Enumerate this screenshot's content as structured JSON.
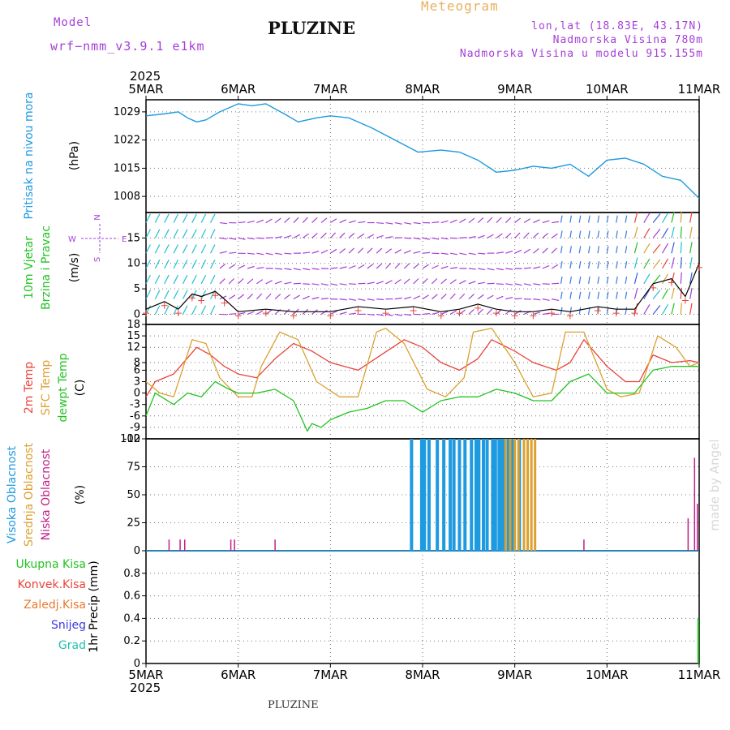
{
  "header": {
    "model_label": "Model",
    "model_name": "wrf−nmm_v3.9.1  e1km",
    "title": "PLUZINE",
    "subtitle": "Meteogram",
    "coords": "lon,lat (18.83E, 43.17N)",
    "elevation": "Nadmorska Visina 780m",
    "model_elevation": "Nadmorska Visina u modelu 915.155m",
    "footer_title": "PLUZINE",
    "credit": "made by Angel"
  },
  "colors": {
    "pressure": "#1e9ae0",
    "t2m": "#e8433a",
    "sfc": "#dca030",
    "dewpt": "#22c322",
    "high_cloud": "#1e9ae0",
    "mid_cloud": "#dca030",
    "low_cloud": "#c0208a",
    "wind_label_a": "#22c322",
    "wind_label_b": "#22c322",
    "rain": "#22c322",
    "conv": "#e8433a",
    "frz": "#e87a30",
    "snow": "#3a3ae0",
    "hail": "#20c0b0",
    "purple": "#a63ed8"
  },
  "time_axis": {
    "year": "2025",
    "ticks": [
      "5MAR",
      "6MAR",
      "7MAR",
      "8MAR",
      "9MAR",
      "10MAR",
      "11MAR"
    ]
  },
  "chart_data": [
    {
      "type": "line",
      "name": "pressure",
      "ylabel_1": "Pritisak na nivou mora",
      "ylabel_2": "(hPa)",
      "ylim": [
        1004,
        1032
      ],
      "yticks": [
        1008,
        1015,
        1022,
        1029
      ],
      "grid": true,
      "x_unit": "days since 5MAR 00UTC",
      "series": [
        {
          "name": "pressure",
          "x": [
            0,
            0.2,
            0.35,
            0.45,
            0.55,
            0.65,
            0.8,
            1.0,
            1.15,
            1.3,
            1.5,
            1.65,
            1.85,
            2.0,
            2.2,
            2.45,
            2.7,
            2.95,
            3.2,
            3.4,
            3.6,
            3.8,
            4.0,
            4.2,
            4.4,
            4.6,
            4.8,
            5.0,
            5.2,
            5.4,
            5.6,
            5.8,
            6.0
          ],
          "values": [
            1028,
            1028.5,
            1029,
            1027.5,
            1026.5,
            1027,
            1029,
            1031,
            1030.5,
            1031,
            1028.5,
            1026.5,
            1027.5,
            1028,
            1027.5,
            1025,
            1022,
            1019,
            1019.5,
            1019,
            1017,
            1014,
            1014.5,
            1015.5,
            1015,
            1016,
            1013,
            1017,
            1017.5,
            1016,
            1013,
            1012,
            1007.5
          ]
        }
      ]
    },
    {
      "type": "line",
      "name": "wind",
      "ylabel_1": "10m Vjetar",
      "ylabel_2": "Brzina i Pravac",
      "ylabel_3": "(m/s)",
      "compass": {
        "n": "N",
        "s": "S",
        "e": "E",
        "w": "W"
      },
      "ylim": [
        -2,
        20
      ],
      "yticks": [
        0,
        5,
        10,
        15
      ],
      "grid": true,
      "series": [
        {
          "name": "wind speed",
          "x": [
            0,
            0.2,
            0.35,
            0.5,
            0.6,
            0.75,
            0.85,
            1.0,
            1.3,
            1.6,
            2.0,
            2.3,
            2.6,
            2.9,
            3.2,
            3.4,
            3.6,
            3.8,
            4.0,
            4.2,
            4.4,
            4.6,
            4.9,
            5.1,
            5.3,
            5.5,
            5.7,
            5.85,
            6.0
          ],
          "values": [
            1,
            2.5,
            1,
            4,
            3.5,
            4.5,
            3,
            0.5,
            1,
            0.5,
            0.5,
            1.5,
            1,
            1.5,
            0.5,
            1,
            2,
            1,
            0.5,
            0.5,
            1,
            0.5,
            1.5,
            1,
            1,
            6,
            7,
            3.5,
            10
          ]
        }
      ],
      "barb_levels": [
        0,
        3,
        6,
        9,
        12,
        15,
        18
      ]
    },
    {
      "type": "line",
      "name": "temperature",
      "ylabel_1": "2m Temp",
      "ylabel_2": "SFC Temp",
      "ylabel_3": "dewpt Temp",
      "ylabel_4": "(C)",
      "ylim": [
        -12,
        18
      ],
      "yticks": [
        -12,
        -9,
        -6,
        -3,
        0,
        3,
        6,
        8,
        12,
        15,
        18
      ],
      "grid": true,
      "series": [
        {
          "name": "2m Temp",
          "x": [
            0,
            0.1,
            0.3,
            0.55,
            0.7,
            0.85,
            1.0,
            1.2,
            1.4,
            1.6,
            1.8,
            2.0,
            2.3,
            2.55,
            2.8,
            3.0,
            3.2,
            3.4,
            3.6,
            3.75,
            4.0,
            4.2,
            4.45,
            4.6,
            4.75,
            5.0,
            5.2,
            5.35,
            5.5,
            5.7,
            5.9,
            6.0
          ],
          "values": [
            -1,
            3,
            5,
            12,
            10,
            7,
            5,
            4,
            9,
            13,
            11,
            8,
            6,
            10,
            14,
            12,
            8,
            6,
            9,
            14,
            11,
            8,
            6,
            8,
            14,
            7,
            3,
            3,
            10,
            8,
            8.5,
            8
          ]
        },
        {
          "name": "SFC Temp",
          "x": [
            0,
            0.15,
            0.3,
            0.5,
            0.65,
            0.8,
            1.0,
            1.15,
            1.25,
            1.45,
            1.65,
            1.85,
            2.1,
            2.3,
            2.5,
            2.6,
            2.8,
            3.05,
            3.25,
            3.45,
            3.55,
            3.75,
            4.0,
            4.2,
            4.4,
            4.55,
            4.75,
            5.0,
            5.15,
            5.35,
            5.55,
            5.75,
            5.9,
            6.0
          ],
          "values": [
            3,
            0,
            -1,
            14,
            13,
            4,
            -1,
            -1,
            7,
            16,
            14,
            3,
            -1,
            -1,
            16,
            17,
            13,
            1,
            -1,
            4,
            16,
            17,
            8,
            -1,
            0,
            16,
            16,
            1,
            -1,
            0,
            15,
            12,
            7,
            8
          ]
        },
        {
          "name": "dewpt Temp",
          "x": [
            0,
            0.1,
            0.3,
            0.45,
            0.6,
            0.75,
            0.9,
            1.0,
            1.2,
            1.4,
            1.6,
            1.75,
            1.8,
            1.9,
            2.0,
            2.2,
            2.4,
            2.6,
            2.8,
            3.0,
            3.2,
            3.4,
            3.6,
            3.8,
            4.0,
            4.2,
            4.4,
            4.6,
            4.8,
            5.0,
            5.3,
            5.5,
            5.7,
            6.0
          ],
          "values": [
            -6,
            0,
            -3,
            0,
            -1,
            3,
            1,
            0,
            0,
            1,
            -2,
            -10,
            -8,
            -9,
            -7,
            -5,
            -4,
            -2,
            -2,
            -5,
            -2,
            -1,
            -1,
            1,
            0,
            -2,
            -2,
            3,
            5,
            0,
            0,
            6,
            7,
            7
          ]
        }
      ]
    },
    {
      "type": "bar",
      "name": "cloud",
      "ylabel_1": "Visoka Oblacnost",
      "ylabel_2": "Srednja Oblacnost",
      "ylabel_3": "Niska Oblacnost",
      "ylabel_4": "(%)",
      "ylim": [
        0,
        100
      ],
      "yticks": [
        0,
        25,
        50,
        75,
        100
      ],
      "grid": true,
      "series": [
        {
          "name": "Visoka Oblacnost",
          "x": [
            2.88,
            2.99,
            3.02,
            3.07,
            3.16,
            3.23,
            3.3,
            3.34,
            3.4,
            3.46,
            3.53,
            3.58,
            3.61,
            3.66,
            3.7,
            3.76,
            3.79,
            3.83,
            3.86,
            3.89,
            3.93,
            3.96,
            3.99,
            4.05
          ],
          "values": [
            100,
            100,
            100,
            100,
            100,
            100,
            100,
            100,
            100,
            100,
            100,
            100,
            100,
            100,
            100,
            100,
            100,
            100,
            100,
            100,
            100,
            100,
            100,
            100
          ]
        },
        {
          "name": "Srednja Oblacnost",
          "x": [
            3.9,
            3.95,
            4.0,
            4.04,
            4.1,
            4.14,
            4.18,
            4.22
          ],
          "values": [
            100,
            100,
            100,
            100,
            100,
            100,
            100,
            100
          ]
        },
        {
          "name": "Niska Oblacnost",
          "x": [
            0.25,
            0.37,
            0.42,
            0.92,
            0.96,
            1.4,
            4.75,
            5.88,
            5.95,
            5.98
          ],
          "values": [
            10,
            10,
            10,
            10,
            10,
            10,
            10,
            29,
            83,
            42
          ]
        }
      ]
    },
    {
      "type": "bar",
      "name": "precip",
      "labels": [
        "Ukupna Kisa",
        "Konvek.Kisa",
        "Zaledj.Kisa",
        "Snijeg",
        "Grad"
      ],
      "ylabel": "1hr Precip (mm)",
      "ylim": [
        0,
        1.0
      ],
      "yticks": [
        0,
        0.2,
        0.4,
        0.6,
        0.8
      ],
      "grid": true,
      "series": [
        {
          "name": "Ukupna Kisa",
          "x": [
            5.99
          ],
          "values": [
            0.4
          ]
        }
      ]
    }
  ]
}
